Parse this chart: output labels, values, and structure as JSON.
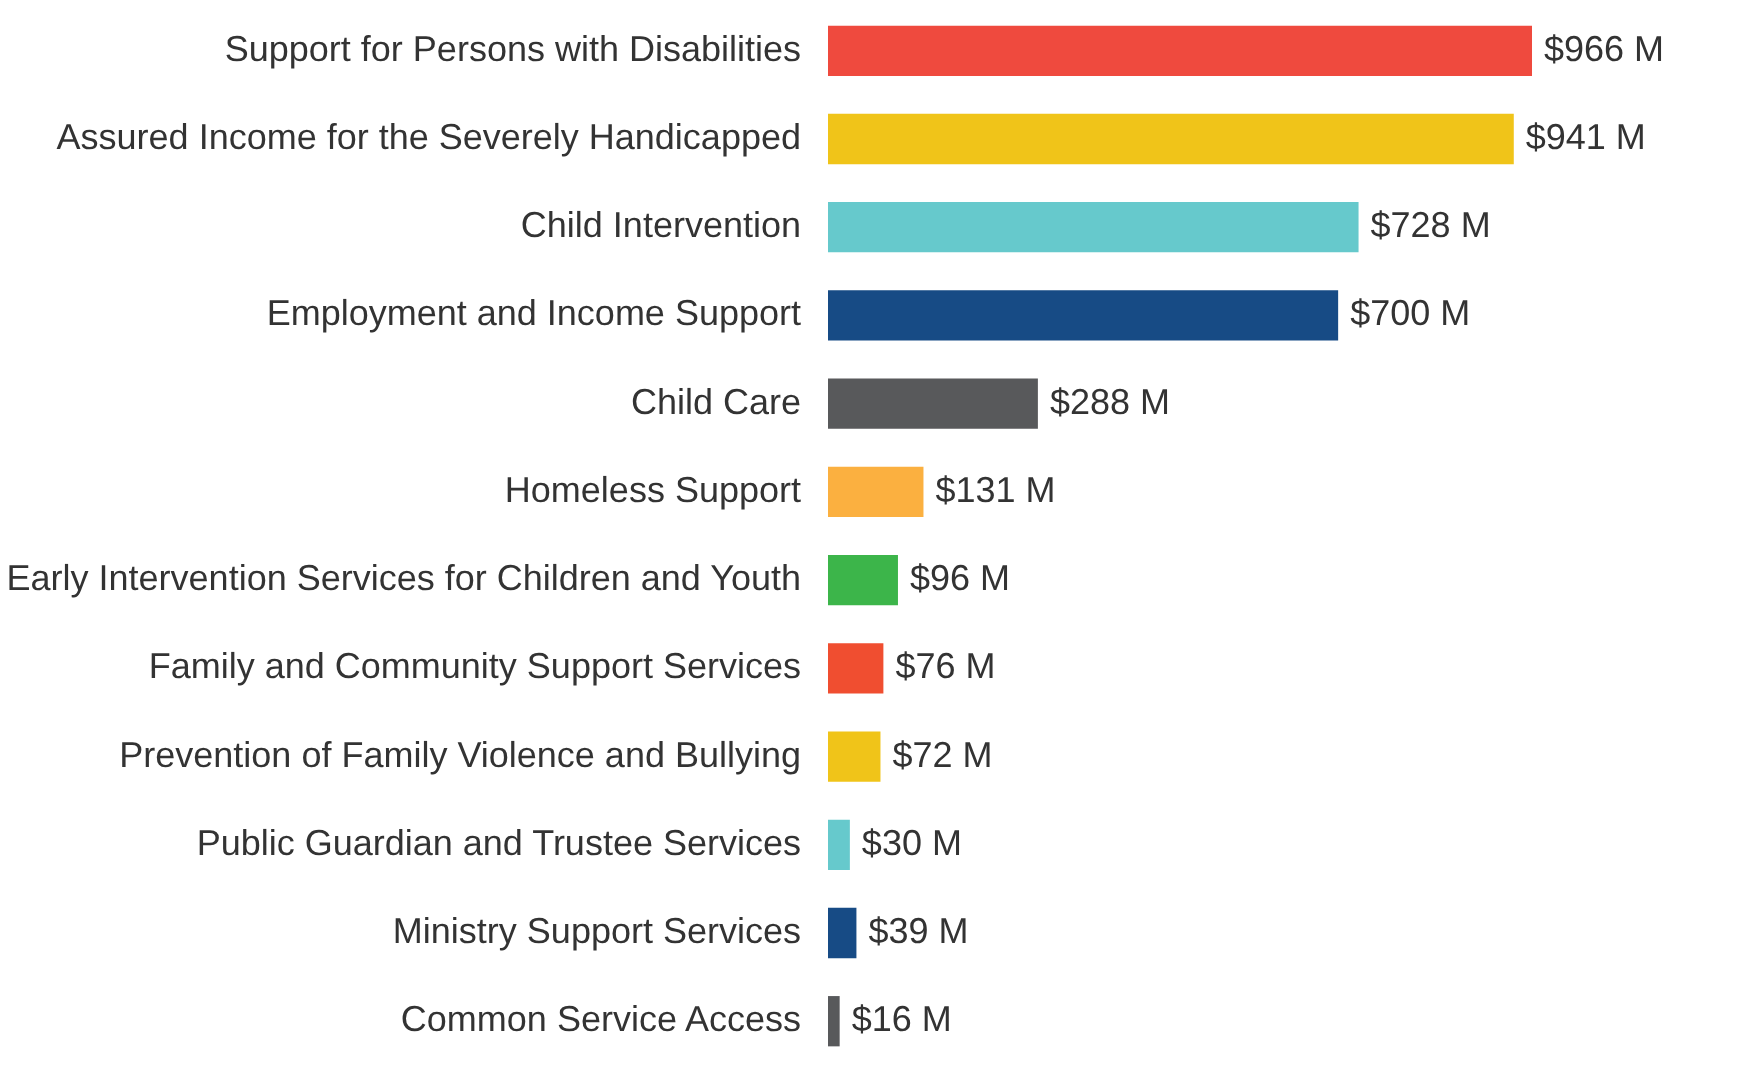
{
  "chart_data": {
    "type": "bar",
    "orientation": "horizontal",
    "categories": [
      "Support for Persons with Disabilities",
      "Assured Income for the Severely Handicapped",
      "Child Intervention",
      "Employment and Income Support",
      "Child Care",
      "Homeless Support",
      "Early Intervention Services for Children and Youth",
      "Family and Community Support Services",
      "Prevention of Family Violence and Bullying",
      "Public Guardian and Trustee Services",
      "Ministry Support Services",
      "Common Service Access"
    ],
    "values": [
      966,
      941,
      728,
      700,
      288,
      131,
      96,
      76,
      72,
      30,
      39,
      16
    ],
    "colors": [
      "#ef4a3e",
      "#f0c419",
      "#66c9cc",
      "#174b85",
      "#58595b",
      "#fbb040",
      "#3cb54a",
      "#f04e30",
      "#f0c419",
      "#66c9cc",
      "#174b85",
      "#58595b"
    ],
    "value_labels": [
      "$966 M",
      "$941 M",
      "$728 M",
      "$700 M",
      "$288 M",
      "$131 M",
      "$96 M",
      "$76 M",
      "$72 M",
      "$30 M",
      "$39 M",
      "$16 M"
    ],
    "grid": false
  }
}
